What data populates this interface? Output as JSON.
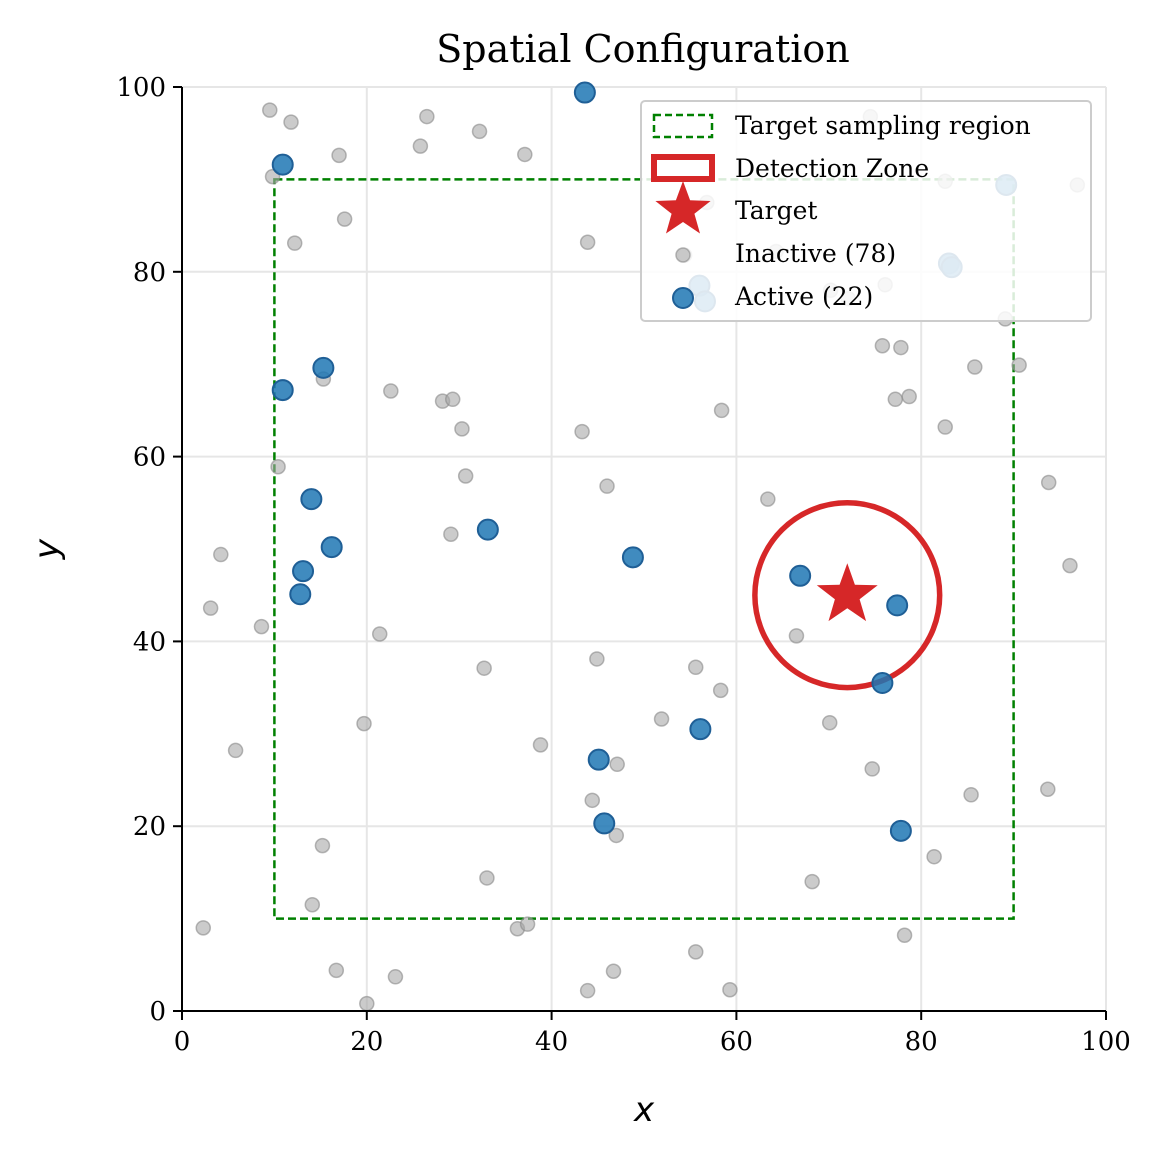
{
  "chart_data": {
    "type": "scatter",
    "title": "Spatial Configuration",
    "xlabel": "x",
    "ylabel": "y",
    "xlim": [
      0,
      100
    ],
    "ylim": [
      0,
      100
    ],
    "xticks": [
      "0",
      "20",
      "40",
      "60",
      "80",
      "100"
    ],
    "yticks": [
      "0",
      "20",
      "40",
      "60",
      "80",
      "100"
    ],
    "grid": true,
    "legend_placement": "top-right",
    "legend": [
      {
        "label": "Target sampling region",
        "kind": "dashed-rect",
        "color": "#008000"
      },
      {
        "label": "Detection Zone",
        "kind": "circle-outline",
        "color": "#d62728"
      },
      {
        "label": "Target",
        "kind": "star",
        "color": "#d62728"
      },
      {
        "label": "Inactive (78)",
        "kind": "point",
        "color": "#a9a9a9"
      },
      {
        "label": "Active (22)",
        "kind": "point",
        "color": "#1f77b4"
      }
    ],
    "sampling_region": {
      "x0": 10,
      "y0": 10,
      "x1": 90,
      "y1": 90,
      "color": "#008000"
    },
    "detection_zone": {
      "cx": 72,
      "cy": 45,
      "r": 10,
      "color": "#d62728"
    },
    "target": {
      "x": 72,
      "y": 45,
      "color": "#d62728"
    },
    "series": [
      {
        "name": "Inactive (78)",
        "color": "#a9a9a9",
        "points": [
          [
            9.5,
            97.5
          ],
          [
            11.8,
            96.2
          ],
          [
            26.5,
            96.8
          ],
          [
            32.2,
            95.2
          ],
          [
            25.8,
            93.6
          ],
          [
            17.0,
            92.6
          ],
          [
            37.1,
            92.7
          ],
          [
            9.8,
            90.3
          ],
          [
            17.6,
            85.7
          ],
          [
            12.2,
            83.1
          ],
          [
            43.9,
            83.2
          ],
          [
            54.4,
            81.8
          ],
          [
            64.3,
            82.2
          ],
          [
            70.2,
            78.0
          ],
          [
            72.1,
            77.1
          ],
          [
            76.1,
            78.6
          ],
          [
            74.5,
            96.8
          ],
          [
            82.6,
            89.8
          ],
          [
            89.1,
            74.9
          ],
          [
            90.6,
            69.9
          ],
          [
            85.8,
            69.7
          ],
          [
            75.8,
            72.0
          ],
          [
            77.8,
            71.8
          ],
          [
            77.2,
            66.2
          ],
          [
            78.7,
            66.5
          ],
          [
            82.6,
            63.2
          ],
          [
            58.4,
            65.0
          ],
          [
            43.3,
            62.7
          ],
          [
            63.4,
            55.4
          ],
          [
            46.0,
            56.8
          ],
          [
            22.6,
            67.1
          ],
          [
            15.3,
            68.4
          ],
          [
            28.2,
            66.0
          ],
          [
            29.3,
            66.2
          ],
          [
            30.3,
            63.0
          ],
          [
            10.4,
            58.9
          ],
          [
            30.7,
            57.9
          ],
          [
            29.1,
            51.6
          ],
          [
            4.2,
            49.4
          ],
          [
            3.1,
            43.6
          ],
          [
            8.6,
            41.6
          ],
          [
            21.4,
            40.8
          ],
          [
            32.7,
            37.1
          ],
          [
            44.9,
            38.1
          ],
          [
            55.6,
            37.2
          ],
          [
            58.3,
            34.7
          ],
          [
            66.5,
            40.6
          ],
          [
            93.8,
            57.2
          ],
          [
            96.1,
            48.2
          ],
          [
            70.1,
            31.2
          ],
          [
            51.9,
            31.6
          ],
          [
            38.8,
            28.8
          ],
          [
            19.7,
            31.1
          ],
          [
            5.8,
            28.2
          ],
          [
            47.1,
            26.7
          ],
          [
            74.7,
            26.2
          ],
          [
            44.4,
            22.8
          ],
          [
            47.0,
            19.0
          ],
          [
            85.4,
            23.4
          ],
          [
            93.7,
            24.0
          ],
          [
            81.4,
            16.7
          ],
          [
            15.2,
            17.9
          ],
          [
            33.0,
            14.4
          ],
          [
            14.1,
            11.5
          ],
          [
            68.2,
            14.0
          ],
          [
            78.2,
            8.2
          ],
          [
            36.3,
            8.9
          ],
          [
            37.4,
            9.4
          ],
          [
            2.3,
            9.0
          ],
          [
            16.7,
            4.4
          ],
          [
            23.1,
            3.7
          ],
          [
            20.0,
            0.8
          ],
          [
            46.7,
            4.3
          ],
          [
            55.6,
            6.4
          ],
          [
            59.3,
            2.3
          ],
          [
            43.9,
            2.2
          ],
          [
            96.9,
            89.4
          ],
          [
            56.8,
            87.5
          ]
        ]
      },
      {
        "name": "Active (22)",
        "color": "#1f77b4",
        "points": [
          [
            43.6,
            99.4
          ],
          [
            10.9,
            91.6
          ],
          [
            89.2,
            89.4
          ],
          [
            83.0,
            80.9
          ],
          [
            83.3,
            80.5
          ],
          [
            56.0,
            78.5
          ],
          [
            56.6,
            76.8
          ],
          [
            15.3,
            69.6
          ],
          [
            10.9,
            67.2
          ],
          [
            14.0,
            55.4
          ],
          [
            16.2,
            50.2
          ],
          [
            33.1,
            52.1
          ],
          [
            48.8,
            49.1
          ],
          [
            13.1,
            47.6
          ],
          [
            12.8,
            45.1
          ],
          [
            66.9,
            47.1
          ],
          [
            77.4,
            43.9
          ],
          [
            75.8,
            35.5
          ],
          [
            56.1,
            30.5
          ],
          [
            45.1,
            27.2
          ],
          [
            45.7,
            20.3
          ],
          [
            77.8,
            19.5
          ]
        ]
      }
    ]
  }
}
